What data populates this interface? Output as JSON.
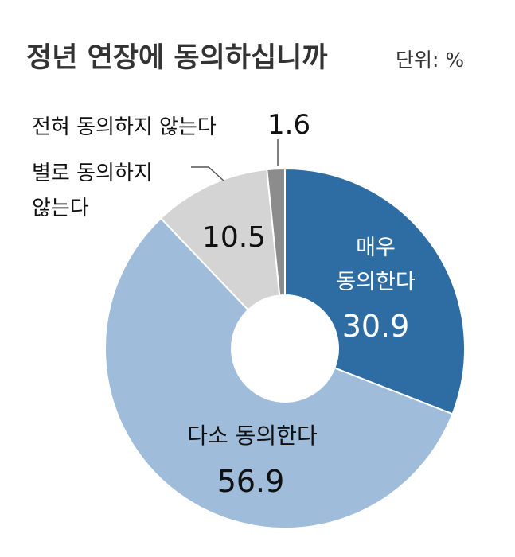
{
  "title": "정년 연장에 동의하십니까",
  "unit": "단위: %",
  "chart_data": {
    "type": "pie",
    "donut": true,
    "title": "정년 연장에 동의하십니까",
    "unit": "%",
    "slices": [
      {
        "name": "매우 동의한다",
        "value": 30.9,
        "color": "#2e6da4"
      },
      {
        "name": "다소 동의한다",
        "value": 56.9,
        "color": "#9fbcda"
      },
      {
        "name": "별로 동의하지 않는다",
        "value": 10.5,
        "color": "#d4d4d4"
      },
      {
        "name": "전혀 동의하지 않는다",
        "value": 1.6,
        "color": "#8c8c8c"
      }
    ],
    "labels": {
      "s1_line1": "매우",
      "s1_line2": "동의한다",
      "s1_value": "30.9",
      "s2_name": "다소 동의한다",
      "s2_value": "56.9",
      "s3_name_line1": "별로 동의하지",
      "s3_name_line2": "않는다",
      "s3_value": "10.5",
      "s4_name": "전혀 동의하지 않는다",
      "s4_value": "1.6"
    }
  }
}
